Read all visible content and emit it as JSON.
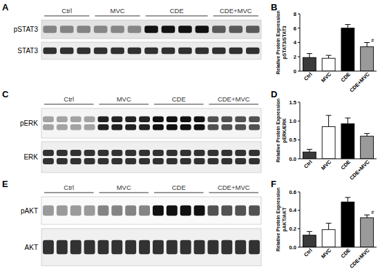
{
  "panel_labels": [
    "A",
    "B",
    "C",
    "D",
    "E",
    "F"
  ],
  "blots": [
    {
      "groups": [
        "Ctrl",
        "MVC",
        "CDE",
        "CDE+MVC"
      ],
      "rows": [
        "pSTAT3",
        "STAT3"
      ]
    },
    {
      "groups": [
        "Ctrl",
        "MVC",
        "CDE",
        "CDE+MVC"
      ],
      "rows": [
        "pERK",
        "ERK"
      ]
    },
    {
      "groups": [
        "Ctrl",
        "MVC",
        "CDE",
        "CDE+MVC"
      ],
      "rows": [
        "pAKT",
        "AKT"
      ]
    }
  ],
  "chart_data": [
    {
      "type": "bar",
      "ylabel": [
        "Relative Protein Expression",
        "pSTAT3/STAT3"
      ],
      "categories": [
        "Ctrl",
        "MVC",
        "CDE",
        "CDE+MVC"
      ],
      "values": [
        1.9,
        1.8,
        6.0,
        3.4
      ],
      "errors": [
        0.55,
        0.4,
        0.5,
        0.6
      ],
      "colors": [
        "#3a3a3a",
        "#ffffff",
        "#000000",
        "#9a9a9a"
      ],
      "ylim": [
        0,
        8
      ],
      "yticks": [
        0,
        2,
        4,
        6,
        8
      ],
      "annotations": [
        {
          "category": "CDE+MVC",
          "text": "#"
        }
      ]
    },
    {
      "type": "bar",
      "ylabel": [
        "Relative Protein Expression",
        "pERK/ERK"
      ],
      "categories": [
        "Ctrl",
        "MVC",
        "CDE",
        "CDE+MVC"
      ],
      "values": [
        0.18,
        0.85,
        0.93,
        0.6
      ],
      "errors": [
        0.07,
        0.3,
        0.15,
        0.07
      ],
      "colors": [
        "#3a3a3a",
        "#ffffff",
        "#000000",
        "#9a9a9a"
      ],
      "ylim": [
        0,
        1.5
      ],
      "yticks": [
        {
          "value": 0,
          "label": "0.0"
        },
        0.5,
        {
          "value": 1,
          "label": "1.0"
        },
        1.5
      ]
    },
    {
      "type": "bar",
      "ylabel": [
        "Relative Protein Expression",
        "pAKT/AKT"
      ],
      "categories": [
        "Ctrl",
        "MVC",
        "CDE",
        "CDE+MVC"
      ],
      "values": [
        0.13,
        0.19,
        0.49,
        0.32
      ],
      "errors": [
        0.04,
        0.07,
        0.05,
        0.03
      ],
      "colors": [
        "#3a3a3a",
        "#ffffff",
        "#000000",
        "#9a9a9a"
      ],
      "ylim": [
        0,
        0.6
      ],
      "yticks": [
        {
          "value": 0,
          "label": "0.0"
        },
        0.2,
        0.4,
        0.6
      ],
      "annotations": [
        {
          "category": "CDE+MVC",
          "text": "#"
        }
      ]
    }
  ]
}
